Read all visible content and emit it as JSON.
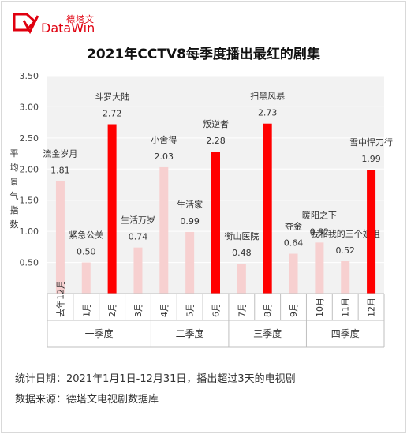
{
  "brand": {
    "name_cn": "德塔文",
    "name_en": "DataWin",
    "accent_color": "#e0000f"
  },
  "chart_data": {
    "type": "bar",
    "title": "2021年CCTV8每季度播出最红的剧集",
    "ylabel": "平均景气指数",
    "ylim": [
      0,
      3.5
    ],
    "yticks": [
      "0.50",
      "1.00",
      "1.50",
      "2.00",
      "2.50",
      "3.00",
      "3.50"
    ],
    "categories": [
      "去年12月",
      "1月",
      "2月",
      "3月",
      "4月",
      "5月",
      "6月",
      "7月",
      "8月",
      "9月",
      "10月",
      "11月",
      "12月"
    ],
    "values": [
      1.81,
      0.5,
      2.72,
      0.74,
      2.03,
      0.99,
      2.28,
      0.48,
      2.73,
      0.64,
      0.82,
      0.52,
      1.99
    ],
    "value_labels": [
      "1.81",
      "0.50",
      "2.72",
      "0.74",
      "2.03",
      "0.99",
      "2.28",
      "0.48",
      "2.73",
      "0.64",
      "0.82",
      "0.52",
      "1.99"
    ],
    "show_names": [
      "流金岁月",
      "紧急公关",
      "斗罗大陆",
      "生活万岁",
      "小舍得",
      "生活家",
      "叛逆者",
      "衡山医院",
      "扫黑风暴",
      "夺金",
      "暖阳之下",
      "我和我的三个姐姐",
      "雪中悍刀行"
    ],
    "highlighted": [
      false,
      false,
      true,
      false,
      false,
      false,
      true,
      false,
      true,
      false,
      false,
      false,
      true
    ],
    "quarters": [
      "一季度",
      "二季度",
      "三季度",
      "四季度"
    ],
    "colors": {
      "highlight": "#ff0000",
      "normal": "#f7d0d0",
      "plot_bg": "#f2f2f2",
      "grid": "#ffffff"
    },
    "grid": true
  },
  "footer": {
    "stat_date": "统计日期：2021年1月1日-12月31日，播出超过3天的电视剧",
    "source": "数据来源：德塔文电视剧数据库"
  }
}
